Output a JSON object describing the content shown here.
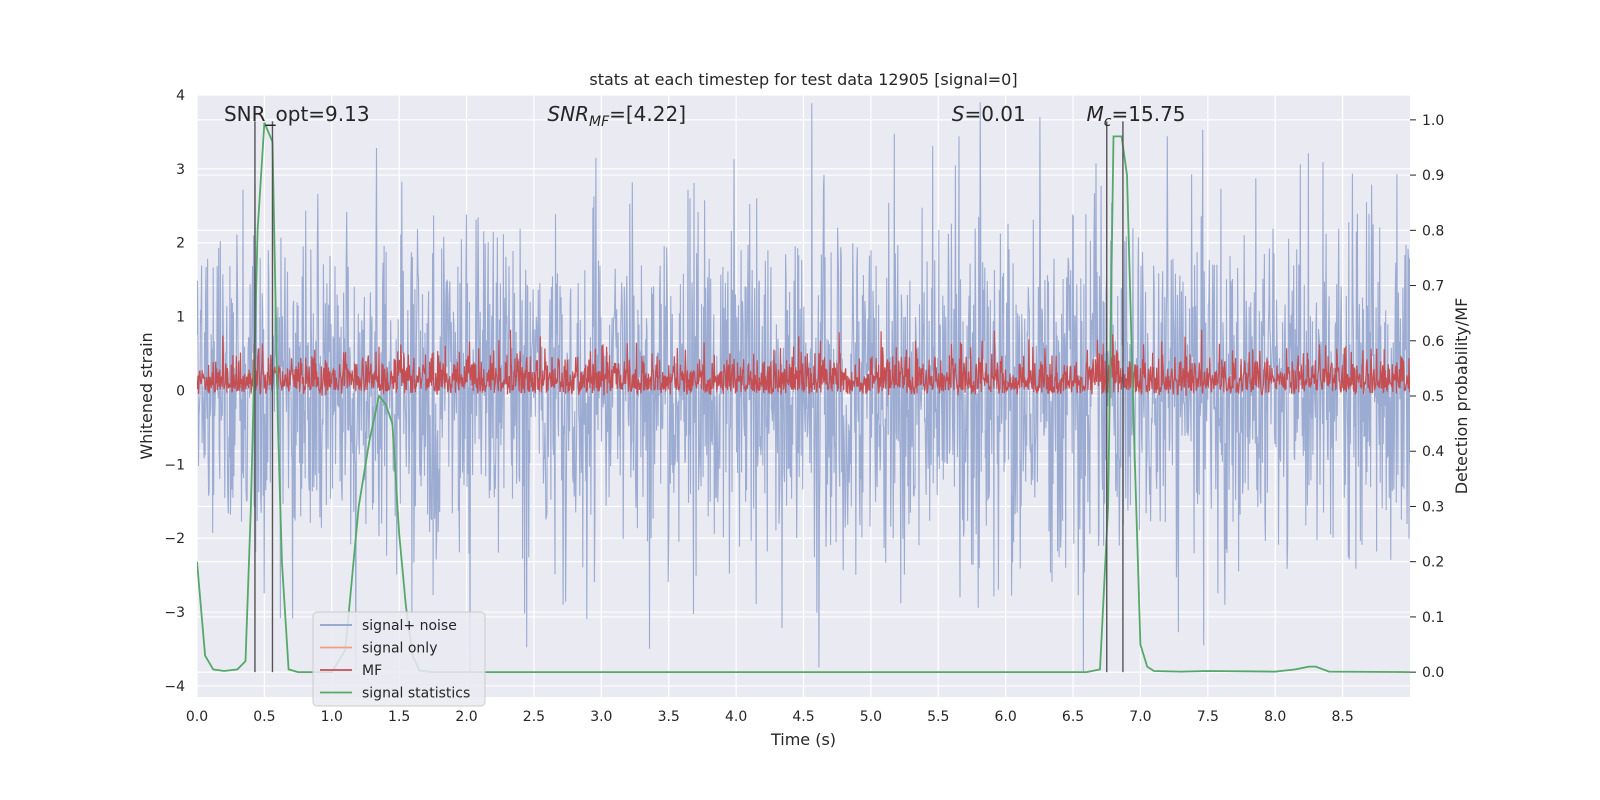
{
  "chart_data": {
    "type": "line",
    "title": "stats at each timestep for test data 12905 [signal=0]",
    "xlabel": "Time (s)",
    "ylabel": "Whitened strain",
    "ylabel_right": "Detection probability/MF",
    "xlim": [
      0,
      9
    ],
    "ylim": [
      -4.15,
      4.0
    ],
    "ylim_right": [
      -0.045,
      1.045
    ],
    "x_ticks": [
      0.0,
      0.5,
      1.0,
      1.5,
      2.0,
      2.5,
      3.0,
      3.5,
      4.0,
      4.5,
      5.0,
      5.5,
      6.0,
      6.5,
      7.0,
      7.5,
      8.0,
      8.5
    ],
    "x_tick_labels": [
      "0.0",
      "0.5",
      "1.0",
      "1.5",
      "2.0",
      "2.5",
      "3.0",
      "3.5",
      "4.0",
      "4.5",
      "5.0",
      "5.5",
      "6.0",
      "6.5",
      "7.0",
      "7.5",
      "8.0",
      "8.5"
    ],
    "y_ticks": [
      4,
      3,
      2,
      1,
      0,
      -1,
      -2,
      -3,
      -4
    ],
    "y_tick_labels": [
      "4",
      "3",
      "2",
      "1",
      "0",
      "−1",
      "−2",
      "−3",
      "−4"
    ],
    "y_right_ticks": [
      1.0,
      0.9,
      0.8,
      0.7,
      0.6,
      0.5,
      0.4,
      0.3,
      0.2,
      0.1,
      0.0
    ],
    "y_right_tick_labels": [
      "1.0",
      "0.9",
      "0.8",
      "0.7",
      "0.6",
      "0.5",
      "0.4",
      "0.3",
      "0.2",
      "0.1",
      "0.0"
    ],
    "annotations": [
      {
        "text": "SNR_opt=9.13",
        "x": 0.2
      },
      {
        "text": "SNR",
        "sub": "MF",
        "suffix": "=[4.22]",
        "x": 2.6
      },
      {
        "text": "S",
        "suffix": "=0.01",
        "x": 5.6
      },
      {
        "text": "M",
        "sub": "c",
        "suffix": "=15.75",
        "x": 6.6
      }
    ],
    "legend": {
      "placement": "lower-left",
      "entries": [
        {
          "label": "signal+ noise",
          "color": "#8da0cb"
        },
        {
          "label": "signal only",
          "color": "#f0a080"
        },
        {
          "label": "MF",
          "color": "#c44e52"
        },
        {
          "label": "signal statistics",
          "color": "#55a868"
        }
      ]
    },
    "grid": true,
    "series": [
      {
        "name": "signal+ noise",
        "axis": "left",
        "style": "noise",
        "color": "#8da0cb",
        "amplitude_range": [
          -3.8,
          3.9
        ]
      },
      {
        "name": "MF",
        "axis": "right",
        "style": "noise",
        "color": "#c44e52",
        "baseline": 0.5,
        "range": [
          0.49,
          0.62
        ]
      },
      {
        "name": "signal statistics",
        "axis": "right",
        "color": "#55a868",
        "x": [
          0.0,
          0.06,
          0.12,
          0.2,
          0.3,
          0.36,
          0.4,
          0.45,
          0.5,
          0.56,
          0.6,
          0.63,
          0.68,
          0.75,
          0.85,
          1.0,
          1.1,
          1.2,
          1.28,
          1.35,
          1.4,
          1.45,
          1.5,
          1.55,
          1.6,
          1.65,
          1.75,
          2.0,
          3.0,
          4.0,
          5.0,
          6.0,
          6.6,
          6.7,
          6.76,
          6.8,
          6.86,
          6.9,
          6.95,
          7.0,
          7.05,
          7.1,
          7.3,
          7.5,
          8.0,
          8.15,
          8.25,
          8.3,
          8.4,
          9.0
        ],
        "y": [
          0.2,
          0.03,
          0.005,
          0.002,
          0.005,
          0.02,
          0.3,
          0.8,
          0.995,
          0.96,
          0.45,
          0.2,
          0.005,
          0.0,
          0.0,
          0.0,
          0.04,
          0.3,
          0.42,
          0.5,
          0.485,
          0.45,
          0.25,
          0.12,
          0.03,
          0.003,
          0.0,
          0.0,
          0.0,
          0.0,
          0.0,
          0.0,
          0.0,
          0.005,
          0.3,
          0.97,
          0.97,
          0.9,
          0.45,
          0.05,
          0.01,
          0.002,
          0.001,
          0.002,
          0.001,
          0.005,
          0.01,
          0.01,
          0.001,
          0.0
        ]
      }
    ],
    "vertical_markers": {
      "color": "#555555",
      "x": [
        0.43,
        0.56,
        6.75,
        6.87
      ],
      "y_top": 0.99,
      "y_bottom": 0.0
    }
  }
}
